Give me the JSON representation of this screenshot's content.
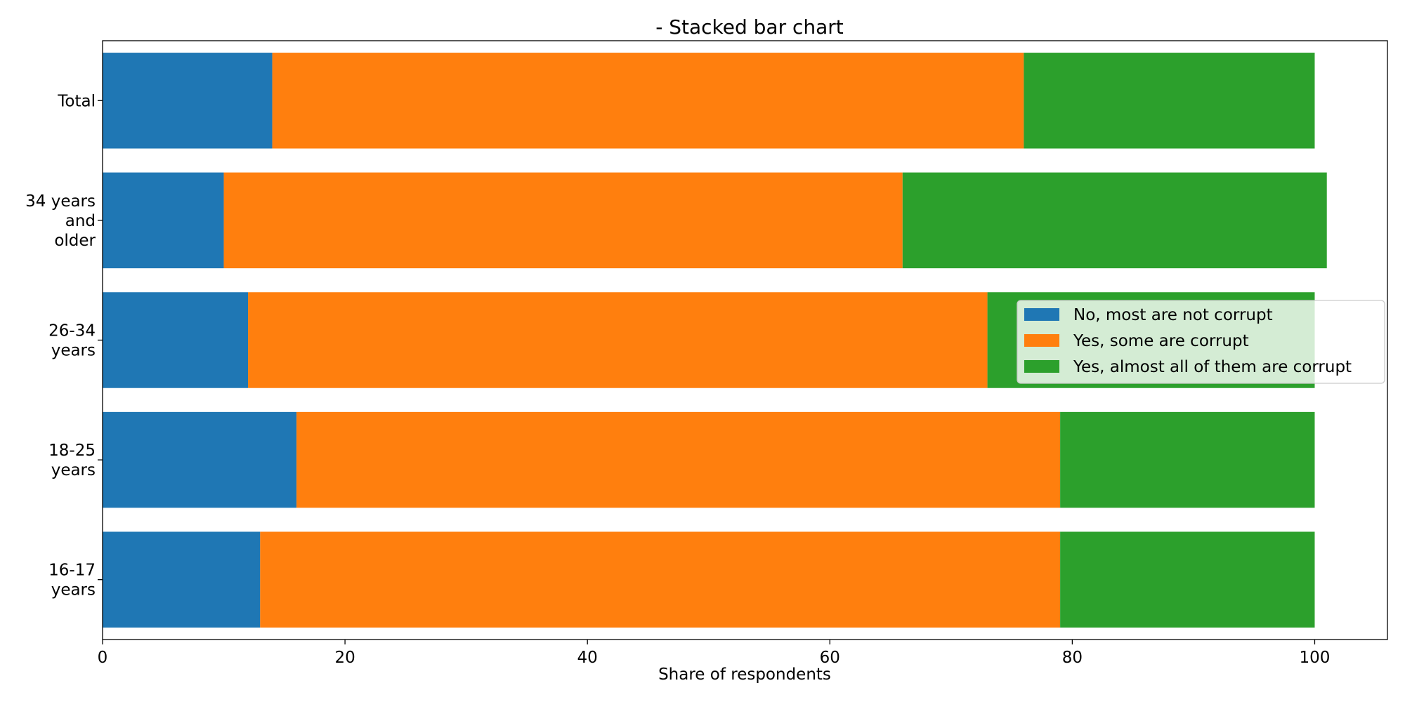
{
  "chart_data": {
    "type": "bar",
    "orientation": "horizontal",
    "stacked": true,
    "title": "- Stacked bar chart",
    "xlabel": "Share of respondents",
    "ylabel": "",
    "xlim": [
      0,
      106
    ],
    "xticks": [
      0,
      20,
      40,
      60,
      80,
      100
    ],
    "grid": false,
    "legend_position": "center-right",
    "categories": [
      [
        "16-17",
        "years"
      ],
      [
        "18-25",
        "years"
      ],
      [
        "26-34",
        "years"
      ],
      [
        "34 years",
        "and",
        "older"
      ],
      [
        "Total"
      ]
    ],
    "series": [
      {
        "name": "No, most are not corrupt",
        "color": "#1f77b4",
        "values": [
          13,
          16,
          12,
          10,
          14
        ]
      },
      {
        "name": "Yes, some are corrupt",
        "color": "#ff7f0e",
        "values": [
          66,
          63,
          61,
          56,
          62
        ]
      },
      {
        "name": "Yes, almost all of them are corrupt",
        "color": "#2ca02c",
        "values": [
          21,
          21,
          27,
          35,
          24
        ]
      }
    ]
  }
}
